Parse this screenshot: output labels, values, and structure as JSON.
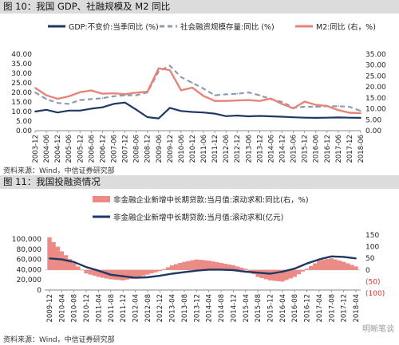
{
  "fig10": {
    "title": "图 10：我国 GDP、社融规模及 M2 同比",
    "source": "资料来源：Wind，中信证券研究部",
    "legend": [
      {
        "label": "GDP:不变价:当季同比 (%)",
        "color": "#1f3864"
      },
      {
        "label": "社会融资规模存量:同比 (%)",
        "color": "#8c9bb0"
      },
      {
        "label": "M2:同比 (右，%)",
        "color": "#e8837a"
      }
    ]
  },
  "fig11": {
    "title": "图 11：我国投融资情况",
    "source": "资料来源：Wind，中信证券研究部",
    "legend": [
      {
        "label": "非金融企业新增中长期贷款:当月值:滚动求和:同比(右，%)",
        "color": "#ec8b86"
      },
      {
        "label": "非金融企业新增中长期贷款:当月值:滚动求和(亿元)",
        "color": "#1f3864"
      }
    ],
    "watermark": "明晰笔谈"
  },
  "chart_data": [
    {
      "type": "line",
      "title": "图 10：我国 GDP、社融规模及 M2 同比",
      "x": [
        "2003-12",
        "2004-06",
        "2004-12",
        "2005-06",
        "2005-12",
        "2006-06",
        "2006-12",
        "2007-06",
        "2007-12",
        "2008-06",
        "2008-12",
        "2009-06",
        "2009-12",
        "2010-06",
        "2010-12",
        "2011-06",
        "2011-12",
        "2012-06",
        "2012-12",
        "2013-06",
        "2013-12",
        "2014-06",
        "2014-12",
        "2015-06",
        "2015-12",
        "2016-06",
        "2016-12",
        "2017-06",
        "2017-12",
        "2018-06"
      ],
      "x_ticks": [
        "2003-12",
        "2004-06",
        "2004-12",
        "2005-06",
        "2005-12",
        "2006-06",
        "2006-12",
        "2007-06",
        "2007-12",
        "2008-06",
        "2008-12",
        "2009-06",
        "2009-12",
        "2010-06",
        "2010-12",
        "2011-06",
        "2011-12",
        "2012-06",
        "2012-12",
        "2013-06",
        "2013-12",
        "2014-06",
        "2014-12",
        "2015-06",
        "2015-12",
        "2016-06",
        "2016-12",
        "2017-06",
        "2017-12",
        "2018-06"
      ],
      "ylim_left": [
        0,
        40
      ],
      "ylim_right": [
        0,
        35
      ],
      "yticks_left": [
        "0.00",
        "5.00",
        "10.00",
        "15.00",
        "20.00",
        "25.00",
        "30.00",
        "35.00",
        "40.00"
      ],
      "yticks_right": [
        "0.00",
        "5.00",
        "10.00",
        "15.00",
        "20.00",
        "25.00",
        "30.00",
        "35.00"
      ],
      "grid": false,
      "legend_position": "top",
      "series": [
        {
          "name": "GDP:不变价:当季同比 (%)",
          "axis": "left",
          "style": "solid",
          "values": [
            10.0,
            10.9,
            9.5,
            10.5,
            10.5,
            11.5,
            12.2,
            14.0,
            14.7,
            11.0,
            7.1,
            6.4,
            11.9,
            10.3,
            9.8,
            9.5,
            8.9,
            7.6,
            7.9,
            7.5,
            7.7,
            7.5,
            7.3,
            7.0,
            6.8,
            6.7,
            6.8,
            6.9,
            6.8,
            6.7
          ]
        },
        {
          "name": "社会融资规模存量:同比 (%)",
          "axis": "left",
          "style": "dashed",
          "values": [
            20.0,
            16.5,
            14.5,
            14.0,
            16.0,
            16.5,
            17.0,
            18.0,
            18.5,
            18.5,
            20.0,
            31.0,
            34.0,
            28.0,
            25.0,
            22.0,
            18.5,
            19.0,
            19.3,
            20.0,
            18.5,
            16.5,
            15.0,
            12.0,
            12.5,
            12.5,
            12.8,
            12.8,
            12.5,
            10.3
          ]
        },
        {
          "name": "M2:同比 (右，%)",
          "axis": "right",
          "style": "solid",
          "values": [
            19.6,
            16.2,
            14.6,
            15.7,
            17.6,
            18.4,
            16.9,
            17.1,
            16.7,
            17.4,
            17.8,
            28.5,
            27.7,
            18.5,
            19.7,
            15.9,
            13.6,
            13.6,
            13.8,
            14.0,
            13.6,
            14.7,
            12.2,
            10.2,
            13.3,
            11.8,
            11.3,
            9.4,
            8.2,
            8.0
          ]
        }
      ]
    },
    {
      "type": "bar",
      "title": "图 11：我国投融资情况",
      "x": [
        "2009-12",
        "2010-04",
        "2010-08",
        "2010-12",
        "2011-04",
        "2011-08",
        "2011-12",
        "2012-04",
        "2012-08",
        "2012-12",
        "2013-04",
        "2013-08",
        "2013-12",
        "2014-04",
        "2014-08",
        "2014-12",
        "2015-04",
        "2015-08",
        "2015-12",
        "2016-04",
        "2016-08",
        "2016-12",
        "2017-04",
        "2017-08",
        "2017-12",
        "2018-04"
      ],
      "x_ticks": [
        "2009-12",
        "2010-04",
        "2010-08",
        "2010-12",
        "2011-04",
        "2011-08",
        "2011-12",
        "2012-04",
        "2012-08",
        "2012-12",
        "2013-04",
        "2013-08",
        "2013-12",
        "2014-04",
        "2014-08",
        "2014-12",
        "2015-04",
        "2015-08",
        "2015-12",
        "2016-04",
        "2016-08",
        "2016-12",
        "2017-04",
        "2017-08",
        "2017-12",
        "2018-04"
      ],
      "ylim_left": [
        0,
        100000
      ],
      "ylim_right": [
        -100,
        150
      ],
      "yticks_left": [
        "0",
        "20,000",
        "40,000",
        "60,000",
        "80,000",
        "100,000"
      ],
      "yticks_right": [
        "(100)",
        "(50)",
        "0",
        "50",
        "100",
        "150"
      ],
      "grid": false,
      "legend_position": "top",
      "series": [
        {
          "name": "非金融企业新增中长期贷款:当月值:滚动求和:同比(右，%)",
          "axis": "right",
          "type": "bar",
          "values": [
            140,
            80,
            30,
            -15,
            -30,
            -40,
            -45,
            -35,
            -20,
            -5,
            20,
            35,
            45,
            40,
            30,
            20,
            5,
            -30,
            -45,
            -50,
            -30,
            5,
            40,
            50,
            35,
            15
          ]
        },
        {
          "name": "非金融企业新增中长期贷款:当月值:滚动求和(亿元)",
          "axis": "left",
          "type": "line",
          "values": [
            62000,
            60000,
            55000,
            45000,
            38000,
            30000,
            27000,
            24000,
            25000,
            28000,
            32000,
            35000,
            38000,
            40000,
            40000,
            39000,
            36000,
            34000,
            32000,
            36000,
            42000,
            52000,
            60000,
            66000,
            65000,
            62000
          ]
        }
      ]
    }
  ]
}
